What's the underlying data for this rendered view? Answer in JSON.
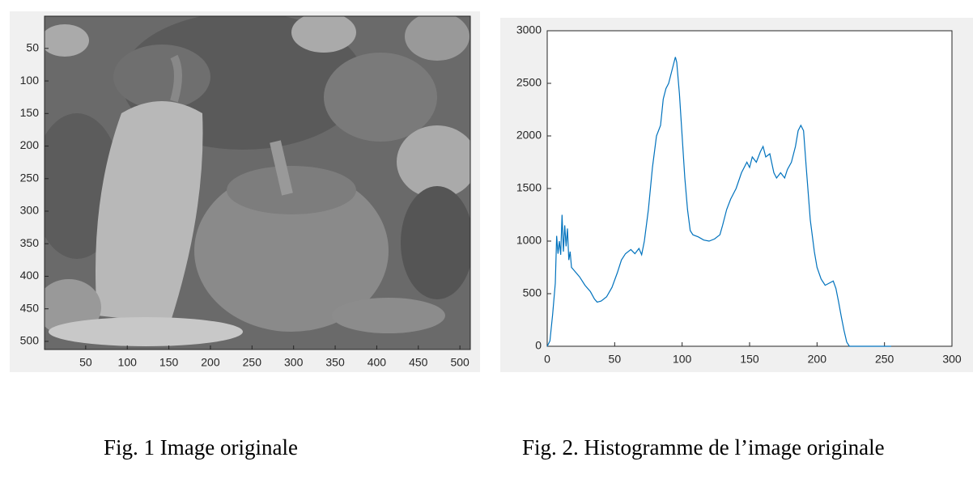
{
  "chart_data": [
    {
      "type": "image",
      "xlim": [
        0.5,
        512.5
      ],
      "xticks": [
        50,
        100,
        150,
        200,
        250,
        300,
        350,
        400,
        450,
        500
      ],
      "ylim": [
        512.5,
        0.5
      ],
      "yticks": [
        50,
        100,
        150,
        200,
        250,
        300,
        350,
        400,
        450,
        500
      ],
      "caption": "Fig. 1 Image originale"
    },
    {
      "type": "line",
      "x": [
        0,
        2,
        4,
        6,
        7,
        8,
        9,
        10,
        11,
        12,
        13,
        14,
        15,
        16,
        17,
        18,
        20,
        24,
        28,
        32,
        35,
        37,
        40,
        44,
        48,
        52,
        55,
        58,
        62,
        65,
        68,
        70,
        72,
        75,
        78,
        81,
        84,
        86,
        88,
        90,
        92,
        94,
        95,
        96,
        98,
        100,
        102,
        104,
        106,
        108,
        112,
        116,
        120,
        124,
        128,
        130,
        133,
        136,
        140,
        144,
        148,
        150,
        152,
        155,
        158,
        160,
        162,
        165,
        168,
        170,
        173,
        176,
        178,
        181,
        184,
        186,
        188,
        190,
        192,
        195,
        198,
        200,
        203,
        206,
        209,
        212,
        214,
        216,
        218,
        220,
        222,
        224,
        230,
        240,
        255
      ],
      "series": [
        {
          "color": "#0072bd",
          "values": [
            0,
            50,
            300,
            600,
            1050,
            880,
            1000,
            870,
            1250,
            900,
            1150,
            950,
            1120,
            820,
            900,
            750,
            720,
            660,
            580,
            520,
            450,
            420,
            430,
            470,
            560,
            700,
            820,
            880,
            920,
            880,
            930,
            870,
            1000,
            1300,
            1700,
            2000,
            2100,
            2350,
            2450,
            2500,
            2600,
            2700,
            2750,
            2700,
            2400,
            2000,
            1600,
            1300,
            1100,
            1060,
            1040,
            1010,
            1000,
            1020,
            1060,
            1150,
            1300,
            1400,
            1500,
            1650,
            1750,
            1700,
            1800,
            1750,
            1850,
            1900,
            1800,
            1830,
            1650,
            1600,
            1650,
            1600,
            1680,
            1750,
            1900,
            2050,
            2100,
            2050,
            1700,
            1200,
            900,
            750,
            640,
            580,
            600,
            620,
            550,
            420,
            280,
            150,
            40,
            0,
            0,
            0,
            0
          ]
        }
      ],
      "xlim": [
        0,
        300
      ],
      "xticks": [
        0,
        50,
        100,
        150,
        200,
        250,
        300
      ],
      "ylim": [
        0,
        3000
      ],
      "yticks": [
        0,
        500,
        1000,
        1500,
        2000,
        2500,
        3000
      ],
      "caption": "Fig. 2. Histogramme de l’image originale"
    }
  ]
}
